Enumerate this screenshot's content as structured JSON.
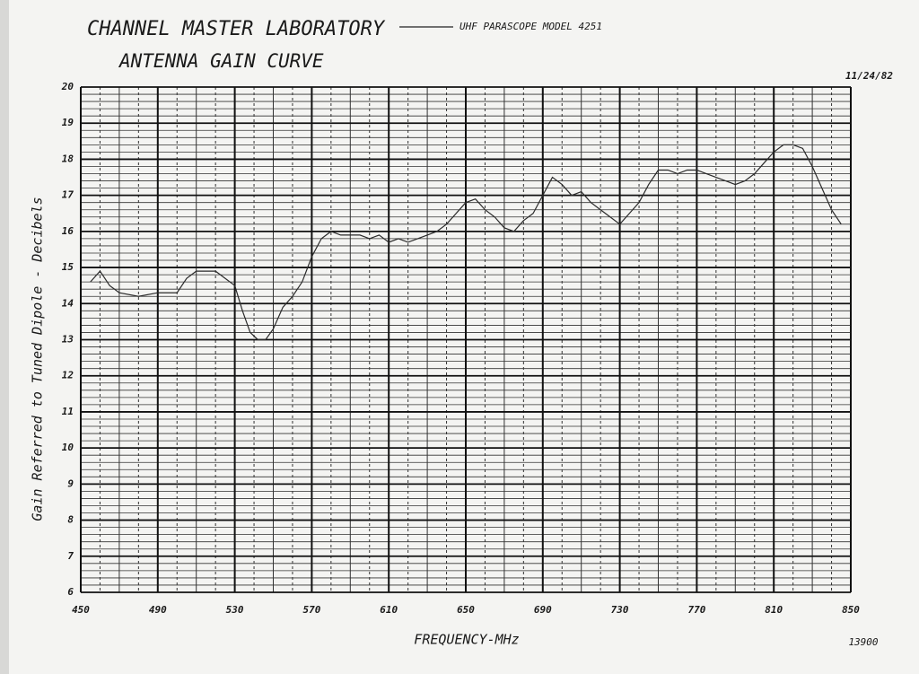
{
  "chart_data": {
    "type": "line",
    "title": "CHANNEL MASTER LABORATORY",
    "subtitle": "ANTENNA GAIN CURVE",
    "date": "11/24/82",
    "footer": "13900",
    "x_label": "FREQUENCY-MHz",
    "y_label": "Gain Referred to Tuned Dipole - Decibels",
    "xlim": [
      450,
      850
    ],
    "xticks": [
      450,
      490,
      530,
      570,
      610,
      650,
      690,
      730,
      770,
      810,
      850
    ],
    "ylim": [
      6,
      20
    ],
    "yticks": [
      6,
      7,
      8,
      9,
      10,
      11,
      12,
      13,
      14,
      15,
      16,
      17,
      18,
      19,
      20
    ],
    "grid": true,
    "series": [
      {
        "name": "UHF PARASCOPE MODEL 4251",
        "color": "#2a2a2a",
        "x": [
          455,
          460,
          465,
          470,
          480,
          490,
          500,
          505,
          510,
          520,
          530,
          534,
          538,
          542,
          546,
          550,
          555,
          560,
          565,
          570,
          575,
          580,
          585,
          590,
          595,
          600,
          605,
          610,
          615,
          620,
          625,
          630,
          635,
          640,
          645,
          650,
          655,
          660,
          665,
          670,
          675,
          680,
          685,
          690,
          695,
          700,
          705,
          710,
          715,
          720,
          725,
          730,
          735,
          740,
          745,
          750,
          755,
          760,
          765,
          770,
          775,
          780,
          785,
          790,
          795,
          800,
          805,
          810,
          815,
          820,
          825,
          830,
          835,
          840,
          845
        ],
        "values": [
          14.6,
          14.9,
          14.5,
          14.3,
          14.2,
          14.3,
          14.3,
          14.7,
          14.9,
          14.9,
          14.5,
          13.8,
          13.2,
          13.0,
          13.0,
          13.3,
          13.9,
          14.2,
          14.6,
          15.3,
          15.8,
          16.0,
          15.9,
          15.9,
          15.9,
          15.8,
          15.9,
          15.7,
          15.8,
          15.7,
          15.8,
          15.9,
          16.0,
          16.2,
          16.5,
          16.8,
          16.9,
          16.6,
          16.4,
          16.1,
          16.0,
          16.3,
          16.5,
          17.0,
          17.5,
          17.3,
          17.0,
          17.1,
          16.8,
          16.6,
          16.4,
          16.2,
          16.5,
          16.8,
          17.3,
          17.7,
          17.7,
          17.6,
          17.7,
          17.7,
          17.6,
          17.5,
          17.4,
          17.3,
          17.4,
          17.6,
          17.9,
          18.2,
          18.4,
          18.4,
          18.3,
          17.8,
          17.2,
          16.6,
          16.2
        ]
      }
    ]
  }
}
